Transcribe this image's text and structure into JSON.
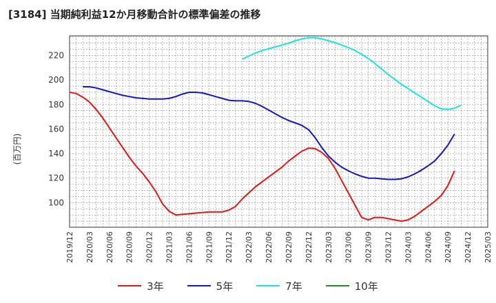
{
  "chart_data": {
    "type": "line",
    "title": "[3184]  当期純利益12か月移動合計の標準偏差の推移",
    "ylabel": "(百万円)",
    "xlabel": "",
    "ylim": [
      80,
      236
    ],
    "yticks": [
      100,
      120,
      140,
      160,
      180,
      200,
      220
    ],
    "xticks": [
      "2019/12",
      "2020/03",
      "2020/06",
      "2020/09",
      "2020/12",
      "2021/03",
      "2021/06",
      "2021/09",
      "2021/12",
      "2022/03",
      "2022/06",
      "2022/09",
      "2022/12",
      "2023/03",
      "2023/06",
      "2023/09",
      "2023/12",
      "2024/03",
      "2024/06",
      "2024/09",
      "2024/12",
      "2025/03"
    ],
    "grid": true,
    "legend_position": "bottom",
    "series": [
      {
        "name": "3年",
        "color": "#e8140f",
        "start_index": 0,
        "values": [
          190,
          189,
          186,
          182,
          176,
          169,
          161,
          153,
          145,
          137,
          130,
          124,
          117,
          109,
          99,
          93,
          90,
          90.5,
          91,
          91.5,
          92,
          92.5,
          92.5,
          92.5,
          94,
          97,
          103,
          108,
          113,
          117,
          121,
          125,
          129,
          134,
          138,
          142,
          144.5,
          144,
          141,
          136,
          128,
          118,
          108,
          98,
          88,
          86,
          88,
          88,
          87,
          86,
          85,
          86,
          89,
          93,
          97,
          101,
          106,
          114,
          126
        ]
      },
      {
        "name": "5年",
        "color": "#1414c8",
        "start_index": 2,
        "values": [
          194.5,
          194.5,
          193.5,
          192,
          190.5,
          189,
          187.5,
          186.5,
          185.5,
          185,
          184.5,
          184.5,
          184.5,
          185,
          186.5,
          188.5,
          190,
          190,
          189.5,
          188,
          186.5,
          185,
          183.5,
          183,
          183,
          182.5,
          181,
          178.5,
          175.5,
          172.5,
          169.5,
          167,
          165,
          163,
          159.5,
          153,
          145,
          138,
          133,
          129,
          126,
          123.5,
          121.5,
          120,
          120,
          119.5,
          119,
          119,
          119.5,
          121,
          123.5,
          126.5,
          130,
          134,
          140,
          147,
          156
        ]
      },
      {
        "name": "7年",
        "color": "#14e6e6",
        "start_index": 26,
        "values": [
          217,
          219.5,
          222,
          224,
          225.5,
          227,
          228.5,
          230,
          232,
          233.5,
          234.5,
          234.5,
          233.5,
          232,
          230.5,
          228.5,
          226.5,
          224,
          221,
          217.5,
          213.5,
          209,
          204.5,
          200.5,
          196.5,
          193,
          189.5,
          186,
          182.5,
          179,
          176.5,
          176,
          177,
          179.5
        ]
      },
      {
        "name": "10年",
        "color": "#1e8c1e",
        "start_index": 0,
        "values": []
      }
    ]
  }
}
